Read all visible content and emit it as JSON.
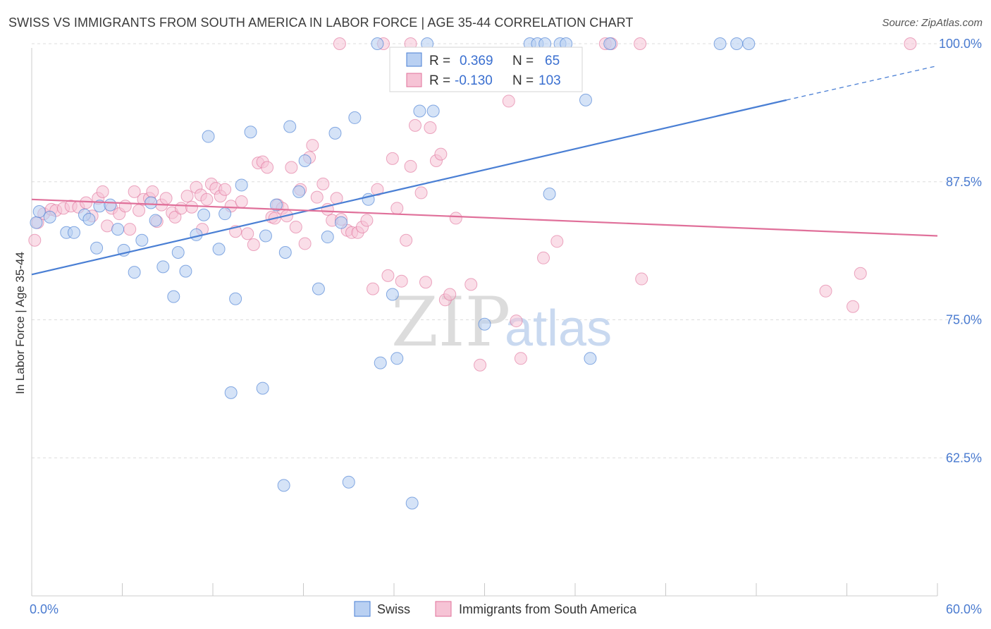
{
  "title": "SWISS VS IMMIGRANTS FROM SOUTH AMERICA IN LABOR FORCE | AGE 35-44 CORRELATION CHART",
  "source": "Source: ZipAtlas.com",
  "watermark": {
    "part1": "ZIP",
    "part2": "atlas"
  },
  "colors": {
    "swiss": "#4a7fd4",
    "swiss_fill": "#b9d0f2",
    "imm": "#e0709a",
    "imm_fill": "#f6c3d5",
    "grid": "#dddddd",
    "tick": "#4a7bd0"
  },
  "stats": {
    "swiss": {
      "r_label": "R =",
      "r_value": "0.369",
      "n_label": "N =",
      "n_value": "65"
    },
    "imm": {
      "r_label": "R =",
      "r_value": "-0.130",
      "n_label": "N =",
      "n_value": "103"
    }
  },
  "chart_data": {
    "type": "scatter",
    "title": "SWISS VS IMMIGRANTS FROM SOUTH AMERICA IN LABOR FORCE | AGE 35-44 CORRELATION CHART",
    "xlabel": "",
    "ylabel": "In Labor Force | Age 35-44",
    "xlim": [
      0,
      60
    ],
    "ylim": [
      50,
      100
    ],
    "x_tick_labels": [
      "0.0%",
      "60.0%"
    ],
    "y_ticks": [
      62.5,
      75.0,
      87.5,
      100.0
    ],
    "y_tick_labels": [
      "62.5%",
      "75.0%",
      "87.5%",
      "100.0%"
    ],
    "grid": true,
    "legend_position": "bottom-center",
    "series": [
      {
        "name": "Swiss",
        "trend": {
          "x0": 0,
          "y0": 79.1,
          "x1": 50,
          "y1": 94.9,
          "dashed_to": 60,
          "dashed_y": 98.0
        },
        "points": [
          [
            0.3,
            83.8
          ],
          [
            0.5,
            84.8
          ],
          [
            1.2,
            84.3
          ],
          [
            2.3,
            82.9
          ],
          [
            2.8,
            82.9
          ],
          [
            3.5,
            84.5
          ],
          [
            3.8,
            84.1
          ],
          [
            4.3,
            81.5
          ],
          [
            4.5,
            85.3
          ],
          [
            5.2,
            85.4
          ],
          [
            5.7,
            83.2
          ],
          [
            6.1,
            81.3
          ],
          [
            6.8,
            79.3
          ],
          [
            7.3,
            82.2
          ],
          [
            7.9,
            85.6
          ],
          [
            8.2,
            84.0
          ],
          [
            8.7,
            79.8
          ],
          [
            9.4,
            77.1
          ],
          [
            9.7,
            81.1
          ],
          [
            10.2,
            79.4
          ],
          [
            10.9,
            82.7
          ],
          [
            11.4,
            84.5
          ],
          [
            11.7,
            91.6
          ],
          [
            12.4,
            81.4
          ],
          [
            12.8,
            84.6
          ],
          [
            13.2,
            68.4
          ],
          [
            13.5,
            76.9
          ],
          [
            13.9,
            87.2
          ],
          [
            14.5,
            92.0
          ],
          [
            15.3,
            68.8
          ],
          [
            15.5,
            82.6
          ],
          [
            16.2,
            85.4
          ],
          [
            16.8,
            81.1
          ],
          [
            16.7,
            60.0
          ],
          [
            17.1,
            92.5
          ],
          [
            17.7,
            86.6
          ],
          [
            18.1,
            89.4
          ],
          [
            19.0,
            77.8
          ],
          [
            19.6,
            82.5
          ],
          [
            20.1,
            91.9
          ],
          [
            20.5,
            83.8
          ],
          [
            21.0,
            60.3
          ],
          [
            21.4,
            93.3
          ],
          [
            22.3,
            85.9
          ],
          [
            22.9,
            100.0
          ],
          [
            23.1,
            71.1
          ],
          [
            23.9,
            77.3
          ],
          [
            24.2,
            71.5
          ],
          [
            25.2,
            58.4
          ],
          [
            25.7,
            93.9
          ],
          [
            26.2,
            100.0
          ],
          [
            26.6,
            93.9
          ],
          [
            30.0,
            74.6
          ],
          [
            33.0,
            100.0
          ],
          [
            33.5,
            100.0
          ],
          [
            34.0,
            100.0
          ],
          [
            34.3,
            86.4
          ],
          [
            35.0,
            100.0
          ],
          [
            35.4,
            100.0
          ],
          [
            36.7,
            94.9
          ],
          [
            37.0,
            71.5
          ],
          [
            38.3,
            100.0
          ],
          [
            45.6,
            100.0
          ],
          [
            46.7,
            100.0
          ],
          [
            47.5,
            100.0
          ]
        ]
      },
      {
        "name": "Immigrants from South America",
        "trend": {
          "x0": 0,
          "y0": 85.9,
          "x1": 60,
          "y1": 82.6
        },
        "points": [
          [
            0.2,
            82.2
          ],
          [
            0.4,
            83.8
          ],
          [
            0.8,
            84.6
          ],
          [
            1.3,
            85.0
          ],
          [
            1.6,
            84.9
          ],
          [
            2.1,
            85.1
          ],
          [
            2.6,
            85.3
          ],
          [
            3.1,
            85.2
          ],
          [
            3.6,
            85.6
          ],
          [
            4.0,
            84.4
          ],
          [
            4.4,
            86.0
          ],
          [
            4.7,
            86.6
          ],
          [
            5.0,
            83.5
          ],
          [
            5.3,
            85.1
          ],
          [
            5.8,
            84.6
          ],
          [
            6.2,
            85.3
          ],
          [
            6.5,
            83.2
          ],
          [
            6.8,
            86.6
          ],
          [
            7.1,
            84.9
          ],
          [
            7.4,
            85.9
          ],
          [
            7.8,
            86.0
          ],
          [
            8.0,
            86.6
          ],
          [
            8.3,
            83.9
          ],
          [
            8.6,
            85.4
          ],
          [
            8.9,
            86.0
          ],
          [
            9.3,
            84.7
          ],
          [
            9.5,
            84.3
          ],
          [
            9.9,
            85.1
          ],
          [
            10.3,
            86.2
          ],
          [
            10.6,
            85.2
          ],
          [
            10.9,
            87.0
          ],
          [
            11.2,
            86.3
          ],
          [
            11.6,
            85.9
          ],
          [
            11.9,
            87.3
          ],
          [
            12.2,
            86.9
          ],
          [
            12.5,
            86.2
          ],
          [
            12.8,
            86.8
          ],
          [
            13.2,
            85.3
          ],
          [
            13.5,
            83.0
          ],
          [
            13.9,
            85.7
          ],
          [
            14.3,
            82.8
          ],
          [
            14.7,
            81.8
          ],
          [
            15.0,
            89.2
          ],
          [
            15.3,
            89.3
          ],
          [
            15.6,
            88.8
          ],
          [
            15.9,
            84.3
          ],
          [
            16.3,
            85.4
          ],
          [
            16.6,
            85.1
          ],
          [
            16.9,
            84.4
          ],
          [
            17.2,
            88.8
          ],
          [
            17.5,
            83.4
          ],
          [
            17.8,
            86.8
          ],
          [
            18.1,
            81.9
          ],
          [
            18.4,
            89.7
          ],
          [
            18.6,
            90.8
          ],
          [
            18.9,
            86.1
          ],
          [
            19.3,
            87.3
          ],
          [
            19.6,
            85.0
          ],
          [
            19.9,
            84.0
          ],
          [
            20.2,
            86.0
          ],
          [
            20.5,
            84.1
          ],
          [
            20.9,
            83.1
          ],
          [
            21.2,
            82.9
          ],
          [
            21.6,
            82.9
          ],
          [
            21.9,
            83.4
          ],
          [
            22.2,
            84.0
          ],
          [
            22.6,
            77.8
          ],
          [
            22.9,
            86.8
          ],
          [
            23.3,
            100.0
          ],
          [
            23.6,
            79.0
          ],
          [
            23.9,
            89.6
          ],
          [
            24.2,
            85.1
          ],
          [
            24.5,
            78.5
          ],
          [
            24.8,
            82.2
          ],
          [
            25.1,
            88.9
          ],
          [
            25.4,
            92.6
          ],
          [
            25.8,
            86.5
          ],
          [
            26.1,
            78.4
          ],
          [
            26.4,
            92.4
          ],
          [
            26.8,
            89.4
          ],
          [
            27.1,
            90.0
          ],
          [
            27.4,
            76.8
          ],
          [
            27.7,
            77.3
          ],
          [
            28.1,
            84.2
          ],
          [
            29.1,
            78.2
          ],
          [
            29.7,
            70.9
          ],
          [
            31.6,
            94.8
          ],
          [
            32.1,
            74.9
          ],
          [
            32.4,
            71.5
          ],
          [
            33.9,
            80.6
          ],
          [
            34.8,
            82.1
          ],
          [
            38.0,
            100.0
          ],
          [
            38.4,
            100.0
          ],
          [
            40.3,
            100.0
          ],
          [
            40.4,
            78.7
          ],
          [
            52.6,
            77.6
          ],
          [
            54.9,
            79.2
          ],
          [
            54.4,
            76.2
          ],
          [
            58.2,
            100.0
          ],
          [
            20.4,
            100.0
          ],
          [
            25.1,
            100.0
          ],
          [
            16.1,
            84.2
          ],
          [
            11.3,
            83.2
          ]
        ]
      }
    ]
  },
  "legend": {
    "items": [
      {
        "label": "Swiss"
      },
      {
        "label": "Immigrants from South America"
      }
    ]
  }
}
